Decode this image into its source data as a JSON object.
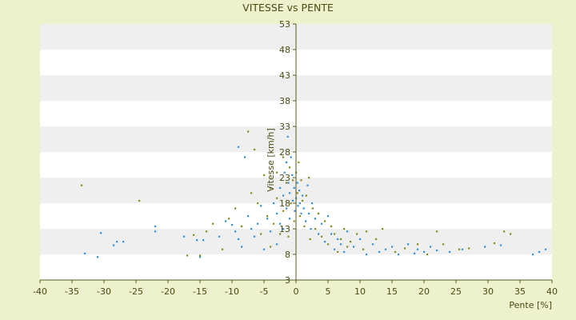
{
  "chart_data": {
    "type": "scatter",
    "title": "VITESSE vs PENTE",
    "xlabel": "Pente [%]",
    "ylabel": "Vitesse [km/h]",
    "xlim": [
      -40,
      40
    ],
    "ylim": [
      3,
      53
    ],
    "x_ticks": [
      "-40",
      "-35",
      "-30",
      "-25",
      "-20",
      "-15",
      "-10",
      "-5",
      "0",
      "5",
      "10",
      "15",
      "20",
      "25",
      "30",
      "35",
      "40"
    ],
    "y_ticks": [
      "3",
      "8",
      "13",
      "18",
      "23",
      "28",
      "33",
      "38",
      "43",
      "48",
      "53"
    ],
    "grid": "horizontal bands",
    "legend": "none",
    "colors": {
      "page_bg": "#eef2cc",
      "band_light": "#ffffff",
      "band_dark": "#efefef",
      "axis": "#5a5a1e",
      "text": "#4a4a14",
      "series_blue": "#2f8fd8",
      "series_olive": "#8a8a1c"
    },
    "series": [
      {
        "color": "#2f8fd8",
        "points": [
          [
            -33,
            8.2
          ],
          [
            -31,
            7.5
          ],
          [
            -30.5,
            12.2
          ],
          [
            -28.5,
            9.8
          ],
          [
            -28,
            10.5
          ],
          [
            -27,
            10.5
          ],
          [
            -22,
            13.5
          ],
          [
            -22,
            12.5
          ],
          [
            -17.5,
            11.5
          ],
          [
            -15.5,
            10.8
          ],
          [
            -15,
            7.5
          ],
          [
            -14.5,
            10.8
          ],
          [
            -12,
            11.5
          ],
          [
            -11,
            14.5
          ],
          [
            -10,
            13.8
          ],
          [
            -9.5,
            12.5
          ],
          [
            -9,
            11
          ],
          [
            -8.5,
            9.5
          ],
          [
            -9,
            29
          ],
          [
            -8,
            27
          ],
          [
            -7.5,
            15.5
          ],
          [
            -7,
            13
          ],
          [
            -6.5,
            11.5
          ],
          [
            -6,
            14
          ],
          [
            -5.5,
            17.5
          ],
          [
            -5,
            9
          ],
          [
            -4.5,
            15
          ],
          [
            -4,
            12.5
          ],
          [
            -3.5,
            18
          ],
          [
            -3,
            16
          ],
          [
            -3,
            10
          ],
          [
            -2.5,
            21
          ],
          [
            -2.5,
            14
          ],
          [
            -2,
            19.5
          ],
          [
            -2,
            13
          ],
          [
            -1.8,
            24
          ],
          [
            -1.5,
            17
          ],
          [
            -1.5,
            26
          ],
          [
            -1.3,
            31
          ],
          [
            -1.2,
            22
          ],
          [
            -1,
            20
          ],
          [
            -1,
            15
          ],
          [
            -0.8,
            27
          ],
          [
            -0.6,
            23.5
          ],
          [
            -0.5,
            18.5
          ],
          [
            -0.3,
            21
          ],
          [
            -0.2,
            16.5
          ],
          [
            0,
            19
          ],
          [
            0.2,
            22
          ],
          [
            0.3,
            17.5
          ],
          [
            0.5,
            20.5
          ],
          [
            0.6,
            18
          ],
          [
            0.8,
            16
          ],
          [
            1,
            19.5
          ],
          [
            1.2,
            17
          ],
          [
            1.5,
            14.5
          ],
          [
            1.8,
            21.5
          ],
          [
            2,
            16
          ],
          [
            2.3,
            13
          ],
          [
            2.5,
            18
          ],
          [
            3,
            15
          ],
          [
            3.5,
            12
          ],
          [
            4,
            14
          ],
          [
            4.5,
            10.5
          ],
          [
            5,
            15.5
          ],
          [
            5.5,
            12
          ],
          [
            6,
            9
          ],
          [
            6.5,
            11
          ],
          [
            7,
            10
          ],
          [
            7.5,
            8.5
          ],
          [
            8,
            12.5
          ],
          [
            9,
            9.5
          ],
          [
            10,
            11
          ],
          [
            11,
            8
          ],
          [
            12,
            10
          ],
          [
            13,
            8.5
          ],
          [
            14,
            9
          ],
          [
            15,
            9.5
          ],
          [
            16,
            8
          ],
          [
            17.5,
            10
          ],
          [
            18.5,
            8.2
          ],
          [
            19,
            9
          ],
          [
            20,
            8.5
          ],
          [
            21,
            9.5
          ],
          [
            22,
            8.8
          ],
          [
            24,
            8.5
          ],
          [
            26,
            9
          ],
          [
            29.5,
            9.5
          ],
          [
            32,
            9.8
          ],
          [
            37,
            8
          ],
          [
            38,
            8.5
          ],
          [
            39,
            9
          ]
        ]
      },
      {
        "color": "#8a8a1c",
        "points": [
          [
            -33.5,
            21.5
          ],
          [
            -24.5,
            18.5
          ],
          [
            -17,
            7.8
          ],
          [
            -16,
            11.8
          ],
          [
            -15,
            7.8
          ],
          [
            -14,
            12.5
          ],
          [
            -13,
            14
          ],
          [
            -11.5,
            9
          ],
          [
            -10.5,
            15
          ],
          [
            -9.5,
            17
          ],
          [
            -8.5,
            13.5
          ],
          [
            -7.5,
            32
          ],
          [
            -7,
            20
          ],
          [
            -6.5,
            28.5
          ],
          [
            -6,
            18
          ],
          [
            -5.5,
            12
          ],
          [
            -5,
            23.5
          ],
          [
            -4.5,
            15.5
          ],
          [
            -4,
            21
          ],
          [
            -4,
            9.5
          ],
          [
            -3.5,
            14
          ],
          [
            -3,
            24
          ],
          [
            -3,
            19
          ],
          [
            -2.5,
            12
          ],
          [
            -2,
            16.5
          ],
          [
            -2,
            27
          ],
          [
            -1.5,
            22
          ],
          [
            -1.2,
            11.5
          ],
          [
            -1,
            25
          ],
          [
            -0.8,
            18
          ],
          [
            -0.5,
            22.5
          ],
          [
            -0.3,
            14.5
          ],
          [
            0,
            24
          ],
          [
            0.2,
            20
          ],
          [
            0.4,
            26
          ],
          [
            0.6,
            15.5
          ],
          [
            0.8,
            22.5
          ],
          [
            1,
            18.5
          ],
          [
            1.3,
            13.5
          ],
          [
            1.6,
            19.5
          ],
          [
            2,
            23
          ],
          [
            2.2,
            11
          ],
          [
            2.6,
            17
          ],
          [
            3,
            13
          ],
          [
            3.5,
            16
          ],
          [
            4,
            11.5
          ],
          [
            4.5,
            14.5
          ],
          [
            5,
            10
          ],
          [
            5.5,
            13.5
          ],
          [
            6,
            12
          ],
          [
            6.5,
            8.5
          ],
          [
            7,
            11
          ],
          [
            7.5,
            13
          ],
          [
            8,
            9.5
          ],
          [
            8.5,
            10.5
          ],
          [
            9.5,
            12
          ],
          [
            10.5,
            9
          ],
          [
            11,
            12.5
          ],
          [
            12.5,
            11
          ],
          [
            13.5,
            13
          ],
          [
            15.5,
            8.5
          ],
          [
            17,
            9.2
          ],
          [
            19,
            10
          ],
          [
            20.5,
            8
          ],
          [
            22,
            12.5
          ],
          [
            23,
            10
          ],
          [
            25.5,
            9
          ],
          [
            27,
            9.2
          ],
          [
            31,
            10.2
          ],
          [
            32.5,
            12.5
          ],
          [
            33.5,
            12
          ]
        ]
      }
    ]
  }
}
